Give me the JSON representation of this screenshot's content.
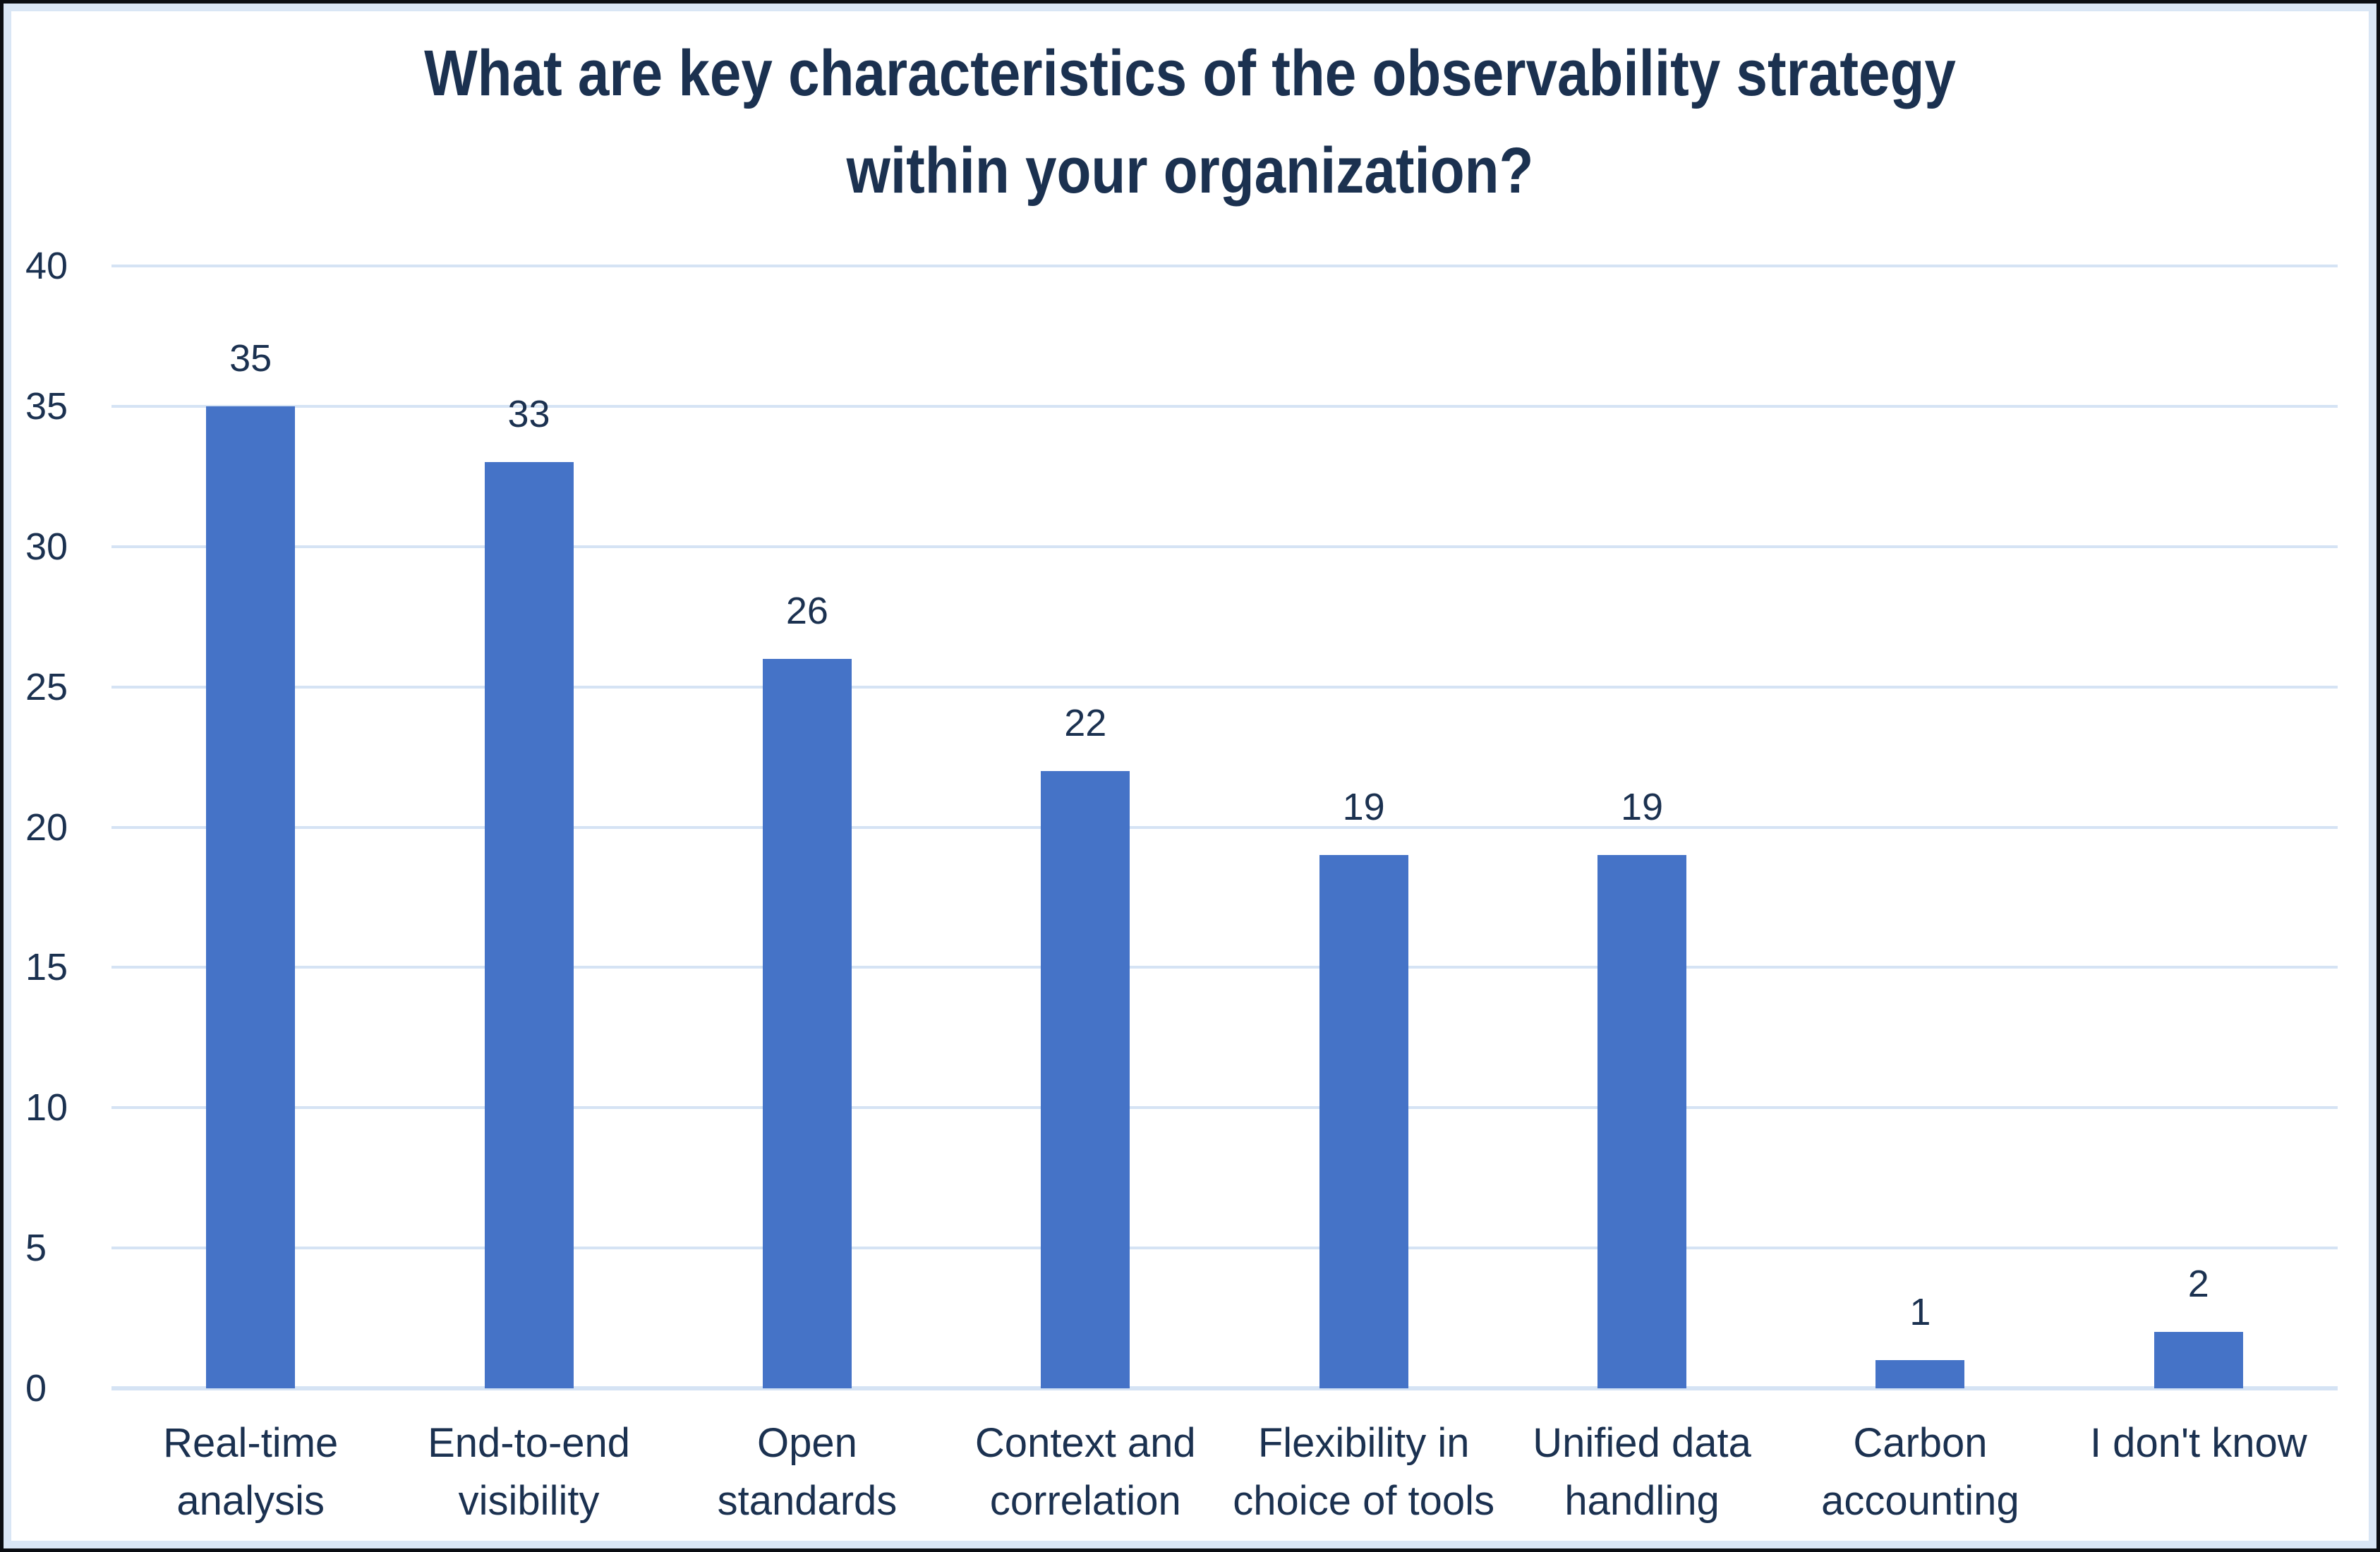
{
  "chart_data": {
    "type": "bar",
    "title": "What are key characteristics of the observability strategy within your organization?",
    "title_lines": [
      "What are key characteristics of the observability strategy",
      "within your organization?"
    ],
    "categories": [
      "Real-time analysis",
      "End-to-end visibility",
      "Open standards",
      "Context and correlation",
      "Flexibility in choice of tools",
      "Unified data handling",
      "Carbon accounting",
      "I don't know"
    ],
    "category_lines": [
      [
        "Real-time",
        "analysis"
      ],
      [
        "End-to-end",
        "visibility"
      ],
      [
        "Open",
        "standards"
      ],
      [
        "Context and",
        "correlation"
      ],
      [
        "Flexibility in",
        "choice of tools"
      ],
      [
        "Unified data",
        "handling"
      ],
      [
        "Carbon",
        "accounting"
      ],
      [
        "I don't know"
      ]
    ],
    "values": [
      35,
      33,
      26,
      22,
      19,
      19,
      1,
      2
    ],
    "data_labels": [
      "35",
      "33",
      "26",
      "22",
      "19",
      "19",
      "1",
      "2"
    ],
    "yticks": [
      40,
      35,
      30,
      25,
      20,
      15,
      10,
      5,
      0
    ],
    "ylim": [
      0,
      40
    ],
    "xlabel": "",
    "ylabel": "",
    "legend": "none",
    "grid": "horizontal",
    "colors": {
      "bar": "#4573C7",
      "text": "#1B3150",
      "gridline": "#D5E3F4",
      "frame_band": "#D9E6F5",
      "outer_border": "#0A0D12",
      "background": "#FFFFFF"
    }
  }
}
